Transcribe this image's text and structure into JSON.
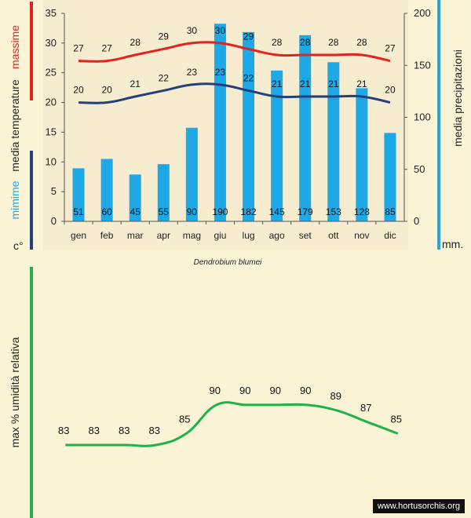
{
  "chart_data": [
    {
      "type": "bar+line",
      "title": "Dendrobium blumei",
      "categories": [
        "gen",
        "feb",
        "mar",
        "apr",
        "mag",
        "giu",
        "lug",
        "ago",
        "set",
        "ott",
        "nov",
        "dic"
      ],
      "left_axis": {
        "ylim": [
          0,
          35
        ],
        "ticks": [
          0,
          5,
          10,
          15,
          20,
          25,
          30,
          35
        ]
      },
      "right_axis": {
        "ylim": [
          0,
          200
        ],
        "ticks": [
          0,
          50,
          100,
          150,
          200
        ]
      },
      "series": [
        {
          "name": "media precipitazioni",
          "kind": "bar",
          "axis": "right",
          "color": "#1fa8e6",
          "values": [
            51,
            60,
            45,
            55,
            90,
            190,
            182,
            145,
            179,
            153,
            128,
            85
          ]
        },
        {
          "name": "massime",
          "kind": "line",
          "axis": "left",
          "color": "#e8211f",
          "values": [
            27,
            27,
            28,
            29,
            30,
            30,
            29,
            28,
            28,
            28,
            28,
            27
          ]
        },
        {
          "name": "minime",
          "kind": "line",
          "axis": "left",
          "color": "#243f7a",
          "values": [
            20,
            20,
            21,
            22,
            23,
            23,
            22,
            21,
            21,
            21,
            21,
            20
          ]
        }
      ],
      "axis_labels": {
        "left_top": "massime",
        "left_mid": "media temperature",
        "left_bot": "mimime",
        "left_unit": "c°",
        "right": "media precipitazioni",
        "right_unit": "mm."
      }
    },
    {
      "type": "line",
      "ylabel": "max % umidità relativa",
      "categories": [
        "gen",
        "feb",
        "mar",
        "apr",
        "mag",
        "giu",
        "lug",
        "ago",
        "set",
        "ott",
        "nov",
        "dic"
      ],
      "series": [
        {
          "name": "umidità relativa",
          "color": "#20b24a",
          "values": [
            83,
            83,
            83,
            83,
            85,
            90,
            90,
            90,
            90,
            89,
            87,
            85
          ]
        }
      ]
    }
  ],
  "watermark": "www.hortusorchis.org",
  "colors": {
    "background": "#fbf3d6",
    "rain": "#1fa8e6",
    "max": "#e8211f",
    "min": "#243f7a",
    "humidity": "#20b24a"
  }
}
